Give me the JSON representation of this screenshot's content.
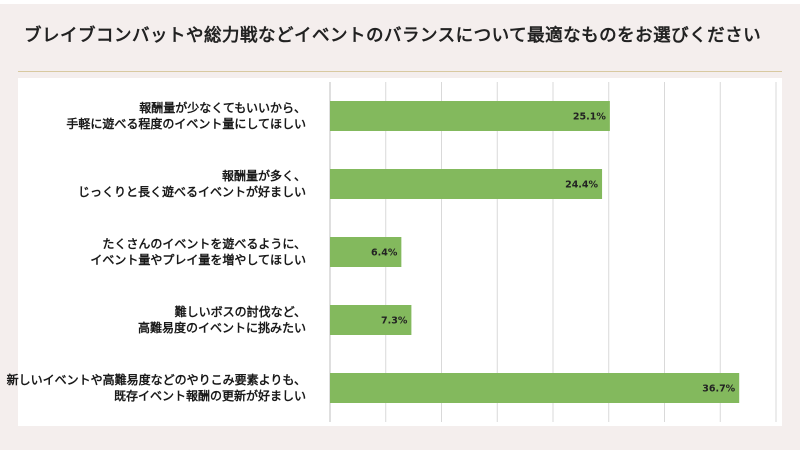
{
  "header": {
    "title": "ブレイブコンバットや総力戦などイベントのバランスについて最適なものをお選びください"
  },
  "chart_data": {
    "type": "bar",
    "orientation": "horizontal",
    "categories": [
      [
        "報酬量が少なくてもいいから、",
        "手軽に遊べる程度のイベント量にしてほしい"
      ],
      [
        "報酬量が多く、",
        "じっくりと長く遊べるイベントが好ましい"
      ],
      [
        "たくさんのイベントを遊べるように、",
        "イベント量やプレイ量を増やしてほしい"
      ],
      [
        "難しいボスの討伐など、",
        "高難易度のイベントに挑みたい"
      ],
      [
        "新しいイベントや高難易度などのやりこみ要素よりも、",
        "既存イベント報酬の更新が好ましい"
      ]
    ],
    "values": [
      25.1,
      24.4,
      6.4,
      7.3,
      36.7
    ],
    "value_labels": [
      "25.1%",
      "24.4%",
      "6.4%",
      "7.3%",
      "36.7%"
    ],
    "xlim": [
      0,
      40
    ],
    "grid": true,
    "bar_color": "#83b95d",
    "grid_color": "#d9d9d9"
  }
}
